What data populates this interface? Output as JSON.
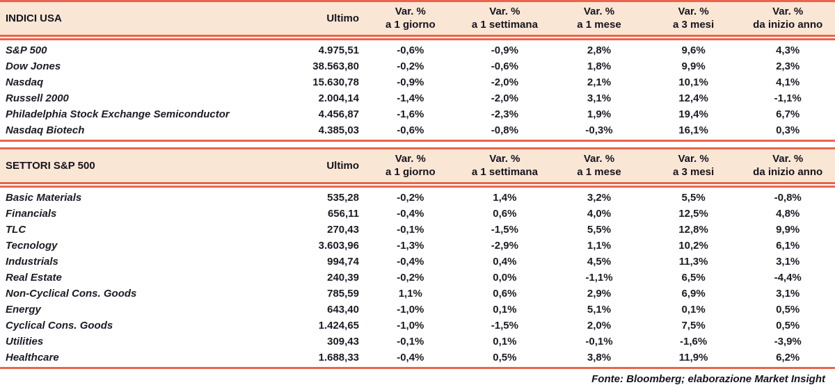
{
  "colors": {
    "accent_line": "#e8654c",
    "header_background": "#fae6d4",
    "text": "#1b1b26"
  },
  "footer": {
    "source_note": "Fonte: Bloomberg; elaborazione Market Insight"
  },
  "chart_data": [
    {
      "type": "table",
      "title": "INDICI USA",
      "ultimo_label": "Ultimo",
      "var_label": "Var. %",
      "sub_labels": [
        "a 1 giorno",
        "a 1 settimana",
        "a 1 mese",
        "a 3 mesi",
        "da inizio anno"
      ],
      "rows": [
        {
          "name": "S&P 500",
          "ultimo": "4.975,51",
          "vars": [
            "-0,6%",
            "-0,9%",
            "2,8%",
            "9,6%",
            "4,3%"
          ]
        },
        {
          "name": "Dow Jones",
          "ultimo": "38.563,80",
          "vars": [
            "-0,2%",
            "-0,6%",
            "1,8%",
            "9,9%",
            "2,3%"
          ]
        },
        {
          "name": "Nasdaq",
          "ultimo": "15.630,78",
          "vars": [
            "-0,9%",
            "-2,0%",
            "2,1%",
            "10,1%",
            "4,1%"
          ]
        },
        {
          "name": "Russell 2000",
          "ultimo": "2.004,14",
          "vars": [
            "-1,4%",
            "-2,0%",
            "3,1%",
            "12,4%",
            "-1,1%"
          ]
        },
        {
          "name": "Philadelphia Stock Exchange Semiconductor",
          "ultimo": "4.456,87",
          "vars": [
            "-1,6%",
            "-2,3%",
            "1,9%",
            "19,4%",
            "6,7%"
          ]
        },
        {
          "name": "Nasdaq Biotech",
          "ultimo": "4.385,03",
          "vars": [
            "-0,6%",
            "-0,8%",
            "-0,3%",
            "16,1%",
            "0,3%"
          ]
        }
      ]
    },
    {
      "type": "table",
      "title": "SETTORI S&P 500",
      "ultimo_label": "Ultimo",
      "var_label": "Var. %",
      "sub_labels": [
        "a 1 giorno",
        "a 1 settimana",
        "a 1 mese",
        "a 3 mesi",
        "da inizio anno"
      ],
      "rows": [
        {
          "name": "Basic Materials",
          "ultimo": "535,28",
          "vars": [
            "-0,2%",
            "1,4%",
            "3,2%",
            "5,5%",
            "-0,8%"
          ]
        },
        {
          "name": "Financials",
          "ultimo": "656,11",
          "vars": [
            "-0,4%",
            "0,6%",
            "4,0%",
            "12,5%",
            "4,8%"
          ]
        },
        {
          "name": "TLC",
          "ultimo": "270,43",
          "vars": [
            "-0,1%",
            "-1,5%",
            "5,5%",
            "12,8%",
            "9,9%"
          ]
        },
        {
          "name": "Tecnology",
          "ultimo": "3.603,96",
          "vars": [
            "-1,3%",
            "-2,9%",
            "1,1%",
            "10,2%",
            "6,1%"
          ]
        },
        {
          "name": "Industrials",
          "ultimo": "994,74",
          "vars": [
            "-0,4%",
            "0,4%",
            "4,5%",
            "11,3%",
            "3,1%"
          ]
        },
        {
          "name": "Real Estate",
          "ultimo": "240,39",
          "vars": [
            "-0,2%",
            "0,0%",
            "-1,1%",
            "6,5%",
            "-4,4%"
          ]
        },
        {
          "name": "Non-Cyclical Cons. Goods",
          "ultimo": "785,59",
          "vars": [
            "1,1%",
            "0,6%",
            "2,9%",
            "6,9%",
            "3,1%"
          ]
        },
        {
          "name": "Energy",
          "ultimo": "643,40",
          "vars": [
            "-1,0%",
            "0,1%",
            "5,1%",
            "0,1%",
            "0,5%"
          ]
        },
        {
          "name": "Cyclical Cons. Goods",
          "ultimo": "1.424,65",
          "vars": [
            "-1,0%",
            "-1,5%",
            "2,0%",
            "7,5%",
            "0,5%"
          ]
        },
        {
          "name": "Utilities",
          "ultimo": "309,43",
          "vars": [
            "-0,1%",
            "0,1%",
            "-0,1%",
            "-1,6%",
            "-3,9%"
          ]
        },
        {
          "name": "Healthcare",
          "ultimo": "1.688,33",
          "vars": [
            "-0,4%",
            "0,5%",
            "3,8%",
            "11,9%",
            "6,2%"
          ]
        }
      ]
    }
  ]
}
